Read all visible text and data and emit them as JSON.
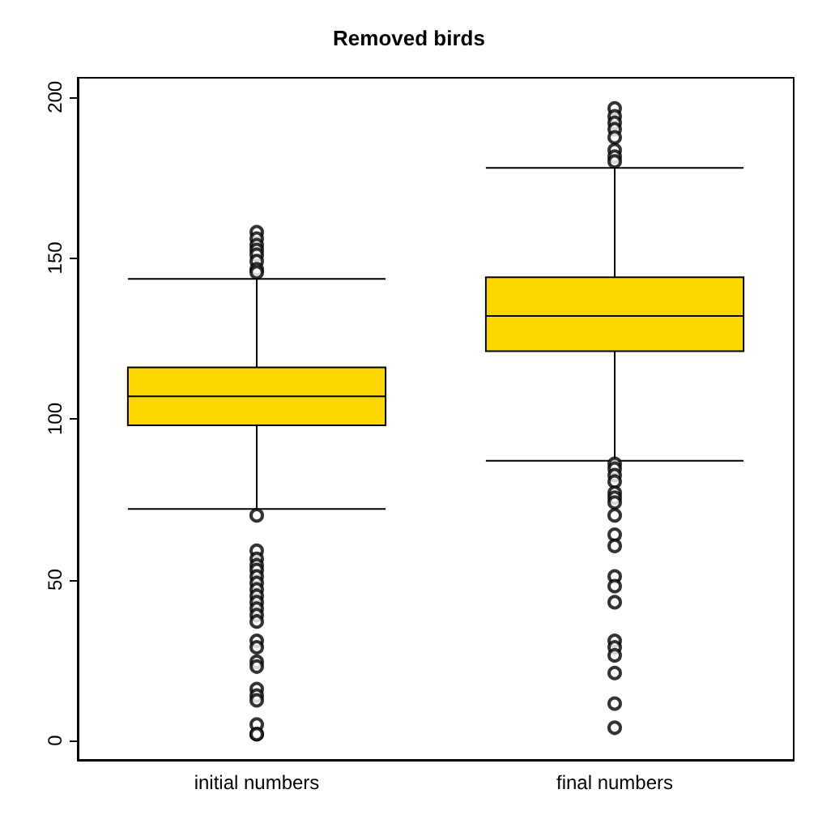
{
  "chart_data": {
    "type": "box",
    "title": "Removed birds",
    "categories": [
      "initial numbers",
      "final numbers"
    ],
    "ylim": [
      -6,
      206
    ],
    "yticks": [
      0,
      50,
      100,
      150,
      200
    ],
    "grid": false,
    "series": [
      {
        "color": "#ffd700",
        "boxes": [
          {
            "low": 72,
            "q1": 98,
            "median": 107,
            "q3": 116,
            "high": 143.5
          },
          {
            "low": 87,
            "q1": 121,
            "median": 132,
            "q3": 144,
            "high": 178
          }
        ]
      },
      {
        "type": "scatter",
        "color": "#000000",
        "marker": "circle",
        "x": [
          "initial numbers",
          "initial numbers",
          "initial numbers",
          "initial numbers",
          "initial numbers",
          "initial numbers",
          "initial numbers",
          "initial numbers",
          "initial numbers",
          "initial numbers",
          "initial numbers",
          "initial numbers",
          "initial numbers",
          "initial numbers",
          "initial numbers",
          "initial numbers",
          "initial numbers",
          "initial numbers",
          "initial numbers",
          "initial numbers",
          "initial numbers",
          "initial numbers",
          "initial numbers",
          "initial numbers",
          "initial numbers",
          "initial numbers",
          "initial numbers",
          "initial numbers",
          "initial numbers",
          "initial numbers",
          "initial numbers",
          "final numbers",
          "final numbers",
          "final numbers",
          "final numbers",
          "final numbers",
          "final numbers",
          "final numbers",
          "final numbers",
          "final numbers",
          "final numbers",
          "final numbers",
          "final numbers",
          "final numbers",
          "final numbers",
          "final numbers",
          "final numbers",
          "final numbers",
          "final numbers",
          "final numbers",
          "final numbers",
          "final numbers",
          "final numbers",
          "final numbers",
          "final numbers",
          "final numbers",
          "final numbers",
          "final numbers"
        ],
        "values": [
          158,
          156,
          154,
          152.5,
          151,
          149,
          146.5,
          145.5,
          70,
          59,
          56.5,
          54.5,
          53,
          51,
          49,
          47,
          45,
          43,
          41,
          39,
          37,
          31,
          29,
          24.5,
          23,
          16,
          14,
          12.5,
          5,
          2,
          2,
          196.5,
          194,
          192,
          190,
          187.5,
          183.5,
          181.5,
          180,
          86,
          84.5,
          82.5,
          80.5,
          77,
          75.5,
          74,
          70,
          64,
          60.5,
          51,
          48,
          43,
          31,
          29,
          26.5,
          21,
          11.5,
          4
        ]
      }
    ]
  }
}
